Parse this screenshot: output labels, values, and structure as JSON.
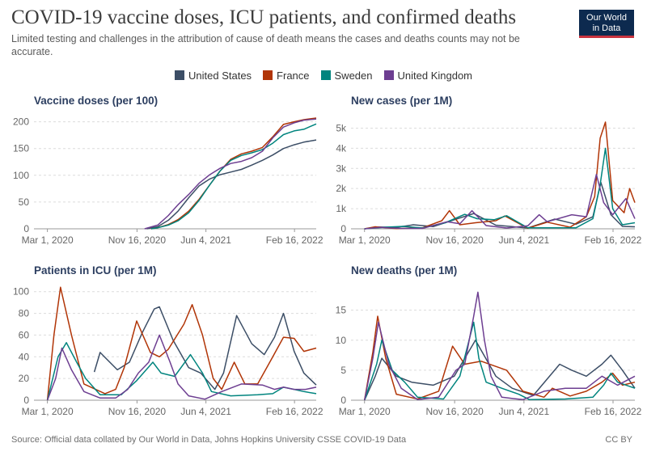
{
  "header": {
    "title": "COVID-19 vaccine doses, ICU patients, and confirmed deaths",
    "subtitle": "Limited testing and challenges in the attribution of cause of death means the cases and deaths counts may not be accurate."
  },
  "logo": {
    "line1": "Our World",
    "line2": "in Data",
    "bg_color": "#0d2a4f",
    "accent_color": "#c8333f"
  },
  "legend": [
    {
      "name": "United States",
      "color": "#3c4e66"
    },
    {
      "name": "France",
      "color": "#b13507"
    },
    {
      "name": "Sweden",
      "color": "#00847e"
    },
    {
      "name": "United Kingdom",
      "color": "#6d3e91"
    }
  ],
  "footer": {
    "source": "Source: Official data collated by Our World in Data, Johns Hopkins University CSSE COVID-19 Data",
    "license": "CC BY"
  },
  "chart_data": [
    {
      "type": "line",
      "title": "Vaccine doses (per 100)",
      "x_type": "date",
      "xlim": [
        "2020-01-22",
        "2022-04-20"
      ],
      "ylim": [
        0,
        210
      ],
      "yticks": [
        0,
        50,
        100,
        150,
        200
      ],
      "ytick_labels": [
        "0",
        "50",
        "100",
        "150",
        "200"
      ],
      "xticks": [
        "2020-03-01",
        "2020-11-16",
        "2021-06-04",
        "2022-02-16"
      ],
      "xtick_labels": [
        "Mar 1, 2020",
        "Nov 16, 2020",
        "Jun 4, 2021",
        "Feb 16, 2022"
      ],
      "grid": true,
      "series": [
        {
          "name": "United States",
          "color": "#3c4e66",
          "x": [
            "2020-12-14",
            "2021-01-15",
            "2021-02-15",
            "2021-03-15",
            "2021-04-15",
            "2021-05-15",
            "2021-06-15",
            "2021-07-15",
            "2021-08-15",
            "2021-09-15",
            "2021-10-15",
            "2021-11-15",
            "2021-12-15",
            "2022-01-15",
            "2022-02-15",
            "2022-03-15",
            "2022-04-20"
          ],
          "y": [
            0,
            4,
            16,
            33,
            58,
            80,
            93,
            101,
            106,
            111,
            119,
            128,
            138,
            150,
            157,
            162,
            166
          ]
        },
        {
          "name": "France",
          "color": "#b13507",
          "x": [
            "2020-12-27",
            "2021-01-15",
            "2021-02-15",
            "2021-03-15",
            "2021-04-15",
            "2021-05-15",
            "2021-06-15",
            "2021-07-15",
            "2021-08-15",
            "2021-09-15",
            "2021-10-15",
            "2021-11-15",
            "2021-12-15",
            "2022-01-15",
            "2022-02-15",
            "2022-03-15",
            "2022-04-20"
          ],
          "y": [
            0,
            2,
            8,
            17,
            33,
            55,
            82,
            108,
            130,
            140,
            145,
            152,
            172,
            195,
            200,
            204,
            207
          ]
        },
        {
          "name": "Sweden",
          "color": "#00847e",
          "x": [
            "2020-12-27",
            "2021-01-15",
            "2021-02-15",
            "2021-03-15",
            "2021-04-15",
            "2021-05-15",
            "2021-06-15",
            "2021-07-15",
            "2021-08-15",
            "2021-09-15",
            "2021-10-15",
            "2021-11-15",
            "2021-12-15",
            "2022-01-15",
            "2022-02-15",
            "2022-03-15",
            "2022-04-20"
          ],
          "y": [
            0,
            2,
            7,
            15,
            30,
            53,
            82,
            108,
            128,
            137,
            142,
            148,
            160,
            176,
            183,
            186,
            196
          ]
        },
        {
          "name": "United Kingdom",
          "color": "#6d3e91",
          "x": [
            "2020-12-08",
            "2021-01-15",
            "2021-02-15",
            "2021-03-15",
            "2021-04-15",
            "2021-05-15",
            "2021-06-15",
            "2021-07-15",
            "2021-08-15",
            "2021-09-15",
            "2021-10-15",
            "2021-11-15",
            "2021-12-15",
            "2022-01-15",
            "2022-02-15",
            "2022-03-15",
            "2022-04-20"
          ],
          "y": [
            0,
            7,
            25,
            45,
            64,
            85,
            101,
            113,
            122,
            126,
            133,
            145,
            170,
            190,
            198,
            203,
            205
          ]
        }
      ]
    },
    {
      "type": "line",
      "title": "New cases (per 1M)",
      "x_type": "date",
      "xlim": [
        "2020-01-22",
        "2022-04-20"
      ],
      "ylim": [
        0,
        5500
      ],
      "yticks": [
        0,
        1000,
        2000,
        3000,
        4000,
        5000
      ],
      "ytick_labels": [
        "0",
        "1k",
        "2k",
        "3k",
        "4k",
        "5k"
      ],
      "xticks": [
        "2020-03-01",
        "2020-11-16",
        "2021-06-04",
        "2022-02-16"
      ],
      "xtick_labels": [
        "Mar 1, 2020",
        "Nov 16, 2020",
        "Jun 4, 2021",
        "Feb 16, 2022"
      ],
      "grid": true,
      "series": [
        {
          "name": "United States",
          "color": "#3c4e66",
          "x": [
            "2020-03-01",
            "2020-04-10",
            "2020-06-01",
            "2020-07-20",
            "2020-09-15",
            "2020-11-15",
            "2021-01-10",
            "2021-03-15",
            "2021-06-15",
            "2021-09-01",
            "2021-11-01",
            "2021-12-20",
            "2022-01-12",
            "2022-02-10",
            "2022-03-15",
            "2022-04-20"
          ],
          "y": [
            0,
            90,
            70,
            200,
            110,
            450,
            760,
            180,
            40,
            480,
            230,
            600,
            2300,
            700,
            120,
            100
          ]
        },
        {
          "name": "France",
          "color": "#b13507",
          "x": [
            "2020-03-01",
            "2020-04-01",
            "2020-06-01",
            "2020-08-15",
            "2020-10-10",
            "2020-11-01",
            "2020-12-01",
            "2021-01-15",
            "2021-03-15",
            "2021-04-10",
            "2021-06-15",
            "2021-08-10",
            "2021-10-15",
            "2021-12-01",
            "2021-12-25",
            "2022-01-10",
            "2022-01-25",
            "2022-02-15",
            "2022-03-20",
            "2022-04-05",
            "2022-04-20"
          ],
          "y": [
            0,
            100,
            10,
            50,
            400,
            900,
            200,
            300,
            400,
            640,
            30,
            330,
            80,
            600,
            1600,
            4500,
            5300,
            1400,
            800,
            2000,
            1300
          ]
        },
        {
          "name": "Sweden",
          "color": "#00847e",
          "x": [
            "2020-03-01",
            "2020-05-01",
            "2020-06-20",
            "2020-08-15",
            "2020-10-20",
            "2020-12-15",
            "2021-01-20",
            "2021-03-10",
            "2021-04-15",
            "2021-06-15",
            "2021-08-15",
            "2021-11-01",
            "2021-12-20",
            "2022-01-10",
            "2022-01-25",
            "2022-02-15",
            "2022-03-15",
            "2022-04-20"
          ],
          "y": [
            0,
            80,
            120,
            40,
            300,
            720,
            500,
            450,
            650,
            50,
            50,
            50,
            500,
            2200,
            4000,
            1000,
            200,
            300
          ]
        },
        {
          "name": "United Kingdom",
          "color": "#6d3e91",
          "x": [
            "2020-03-01",
            "2020-04-15",
            "2020-06-15",
            "2020-08-15",
            "2020-10-25",
            "2020-12-01",
            "2021-01-05",
            "2021-02-15",
            "2021-04-15",
            "2021-06-15",
            "2021-07-18",
            "2021-08-10",
            "2021-10-20",
            "2021-12-01",
            "2021-12-30",
            "2022-01-20",
            "2022-02-15",
            "2022-03-25",
            "2022-04-20"
          ],
          "y": [
            0,
            70,
            20,
            20,
            350,
            250,
            900,
            160,
            40,
            150,
            700,
            350,
            700,
            600,
            2700,
            1300,
            700,
            1500,
            500
          ]
        }
      ]
    },
    {
      "type": "line",
      "title": "Patients in ICU (per 1M)",
      "x_type": "date",
      "xlim": [
        "2020-01-22",
        "2022-04-20"
      ],
      "ylim": [
        0,
        105
      ],
      "yticks": [
        0,
        20,
        40,
        60,
        80,
        100
      ],
      "ytick_labels": [
        "0",
        "20",
        "40",
        "60",
        "80",
        "100"
      ],
      "xticks": [
        "2020-03-01",
        "2020-11-16",
        "2021-06-04",
        "2022-02-16"
      ],
      "xtick_labels": [
        "Mar 1, 2020",
        "Nov 16, 2020",
        "Jun 4, 2021",
        "Feb 16, 2022"
      ],
      "grid": true,
      "series": [
        {
          "name": "United States",
          "color": "#3c4e66",
          "x": [
            "2020-07-15",
            "2020-08-01",
            "2020-09-20",
            "2020-10-25",
            "2020-12-01",
            "2021-01-05",
            "2021-01-20",
            "2021-03-01",
            "2021-04-15",
            "2021-05-20",
            "2021-06-30",
            "2021-07-25",
            "2021-09-01",
            "2021-10-15",
            "2021-11-20",
            "2021-12-20",
            "2022-01-15",
            "2022-02-15",
            "2022-03-15",
            "2022-04-20"
          ],
          "y": [
            26,
            44,
            28,
            35,
            62,
            84,
            86,
            55,
            30,
            25,
            10,
            25,
            78,
            52,
            42,
            58,
            80,
            45,
            25,
            14
          ]
        },
        {
          "name": "France",
          "color": "#b13507",
          "x": [
            "2020-03-01",
            "2020-03-20",
            "2020-04-08",
            "2020-05-10",
            "2020-06-15",
            "2020-08-15",
            "2020-09-15",
            "2020-10-10",
            "2020-11-15",
            "2020-12-25",
            "2021-01-20",
            "2021-02-15",
            "2021-04-01",
            "2021-04-25",
            "2021-05-25",
            "2021-06-25",
            "2021-07-20",
            "2021-08-25",
            "2021-09-25",
            "2021-11-01",
            "2021-12-15",
            "2022-01-15",
            "2022-02-15",
            "2022-03-15",
            "2022-04-20"
          ],
          "y": [
            0,
            60,
            104,
            60,
            15,
            6,
            10,
            30,
            73,
            44,
            40,
            47,
            70,
            88,
            60,
            20,
            10,
            35,
            15,
            15,
            40,
            58,
            57,
            45,
            48
          ]
        },
        {
          "name": "Sweden",
          "color": "#00847e",
          "x": [
            "2020-03-01",
            "2020-04-01",
            "2020-04-25",
            "2020-05-25",
            "2020-06-20",
            "2020-08-01",
            "2020-10-01",
            "2020-11-15",
            "2021-01-01",
            "2021-01-25",
            "2021-03-05",
            "2021-04-20",
            "2021-05-25",
            "2021-06-20",
            "2021-08-15",
            "2021-11-01",
            "2021-12-15",
            "2022-01-15",
            "2022-02-15",
            "2022-03-15",
            "2022-04-20"
          ],
          "y": [
            0,
            40,
            53,
            35,
            20,
            5,
            5,
            18,
            35,
            25,
            22,
            42,
            25,
            8,
            4,
            5,
            6,
            12,
            10,
            8,
            6
          ]
        },
        {
          "name": "United Kingdom",
          "color": "#6d3e91",
          "x": [
            "2020-03-01",
            "2020-03-25",
            "2020-04-12",
            "2020-05-10",
            "2020-06-15",
            "2020-08-01",
            "2020-09-15",
            "2020-10-20",
            "2020-11-20",
            "2020-12-20",
            "2021-01-20",
            "2021-02-20",
            "2021-03-15",
            "2021-04-15",
            "2021-06-01",
            "2021-07-20",
            "2021-09-15",
            "2021-11-15",
            "2021-12-20",
            "2022-01-15",
            "2022-02-15",
            "2022-03-20",
            "2022-04-20"
          ],
          "y": [
            0,
            20,
            48,
            28,
            8,
            2,
            2,
            10,
            25,
            35,
            60,
            35,
            15,
            4,
            1,
            8,
            15,
            14,
            10,
            12,
            10,
            10,
            12
          ]
        }
      ]
    },
    {
      "type": "line",
      "title": "New deaths (per 1M)",
      "x_type": "date",
      "xlim": [
        "2020-01-22",
        "2022-04-20"
      ],
      "ylim": [
        0,
        19
      ],
      "yticks": [
        0,
        5,
        10,
        15
      ],
      "ytick_labels": [
        "0",
        "5",
        "10",
        "15"
      ],
      "xticks": [
        "2020-03-01",
        "2020-11-16",
        "2021-06-04",
        "2022-02-16"
      ],
      "xtick_labels": [
        "Mar 1, 2020",
        "Nov 16, 2020",
        "Jun 4, 2021",
        "Feb 16, 2022"
      ],
      "grid": true,
      "series": [
        {
          "name": "United States",
          "color": "#3c4e66",
          "x": [
            "2020-03-01",
            "2020-04-01",
            "2020-04-20",
            "2020-06-01",
            "2020-07-15",
            "2020-09-15",
            "2020-11-15",
            "2021-01-15",
            "2021-03-15",
            "2021-05-01",
            "2021-07-01",
            "2021-09-15",
            "2021-10-20",
            "2021-12-01",
            "2022-01-15",
            "2022-02-10",
            "2022-03-15",
            "2022-04-20"
          ],
          "y": [
            0,
            4,
            7,
            4,
            3,
            2.5,
            4,
            10,
            4,
            2,
            0.8,
            6,
            5,
            4,
            6,
            7.5,
            5,
            2
          ]
        },
        {
          "name": "France",
          "color": "#b13507",
          "x": [
            "2020-03-01",
            "2020-03-25",
            "2020-04-08",
            "2020-05-01",
            "2020-06-01",
            "2020-08-01",
            "2020-10-01",
            "2020-11-10",
            "2020-12-15",
            "2021-02-01",
            "2021-04-15",
            "2021-06-01",
            "2021-08-01",
            "2021-08-25",
            "2021-10-15",
            "2021-12-01",
            "2022-01-15",
            "2022-02-15",
            "2022-03-15",
            "2022-04-20"
          ],
          "y": [
            0,
            8,
            14,
            7,
            1,
            0.2,
            1.5,
            9,
            6,
            6.5,
            5,
            1.5,
            0.5,
            2,
            0.7,
            1.5,
            3,
            4.5,
            2.5,
            3
          ]
        },
        {
          "name": "Sweden",
          "color": "#00847e",
          "x": [
            "2020-03-01",
            "2020-04-05",
            "2020-04-20",
            "2020-05-20",
            "2020-06-25",
            "2020-08-01",
            "2020-10-15",
            "2020-12-01",
            "2021-01-10",
            "2021-01-25",
            "2021-02-15",
            "2021-04-01",
            "2021-05-20",
            "2021-06-20",
            "2021-10-01",
            "2021-12-20",
            "2022-01-20",
            "2022-02-10",
            "2022-03-01",
            "2022-04-20"
          ],
          "y": [
            0,
            6,
            10,
            5,
            3,
            0.5,
            0.2,
            4,
            13,
            7,
            3,
            2,
            1,
            0.1,
            0.2,
            0.5,
            2.5,
            4.5,
            3,
            2
          ]
        },
        {
          "name": "United Kingdom",
          "color": "#6d3e91",
          "x": [
            "2020-03-01",
            "2020-03-25",
            "2020-04-10",
            "2020-05-10",
            "2020-06-15",
            "2020-08-01",
            "2020-10-01",
            "2020-11-20",
            "2020-12-15",
            "2021-01-10",
            "2021-01-22",
            "2021-02-10",
            "2021-03-01",
            "2021-04-01",
            "2021-06-01",
            "2021-08-01",
            "2021-10-01",
            "2021-12-01",
            "2022-01-15",
            "2022-03-01",
            "2022-04-20"
          ],
          "y": [
            0,
            7,
            13,
            6,
            2,
            0.1,
            0.5,
            5,
            6,
            14,
            18,
            10,
            4,
            0.5,
            0.1,
            1.5,
            2,
            2,
            4,
            2.5,
            4
          ]
        }
      ]
    }
  ]
}
